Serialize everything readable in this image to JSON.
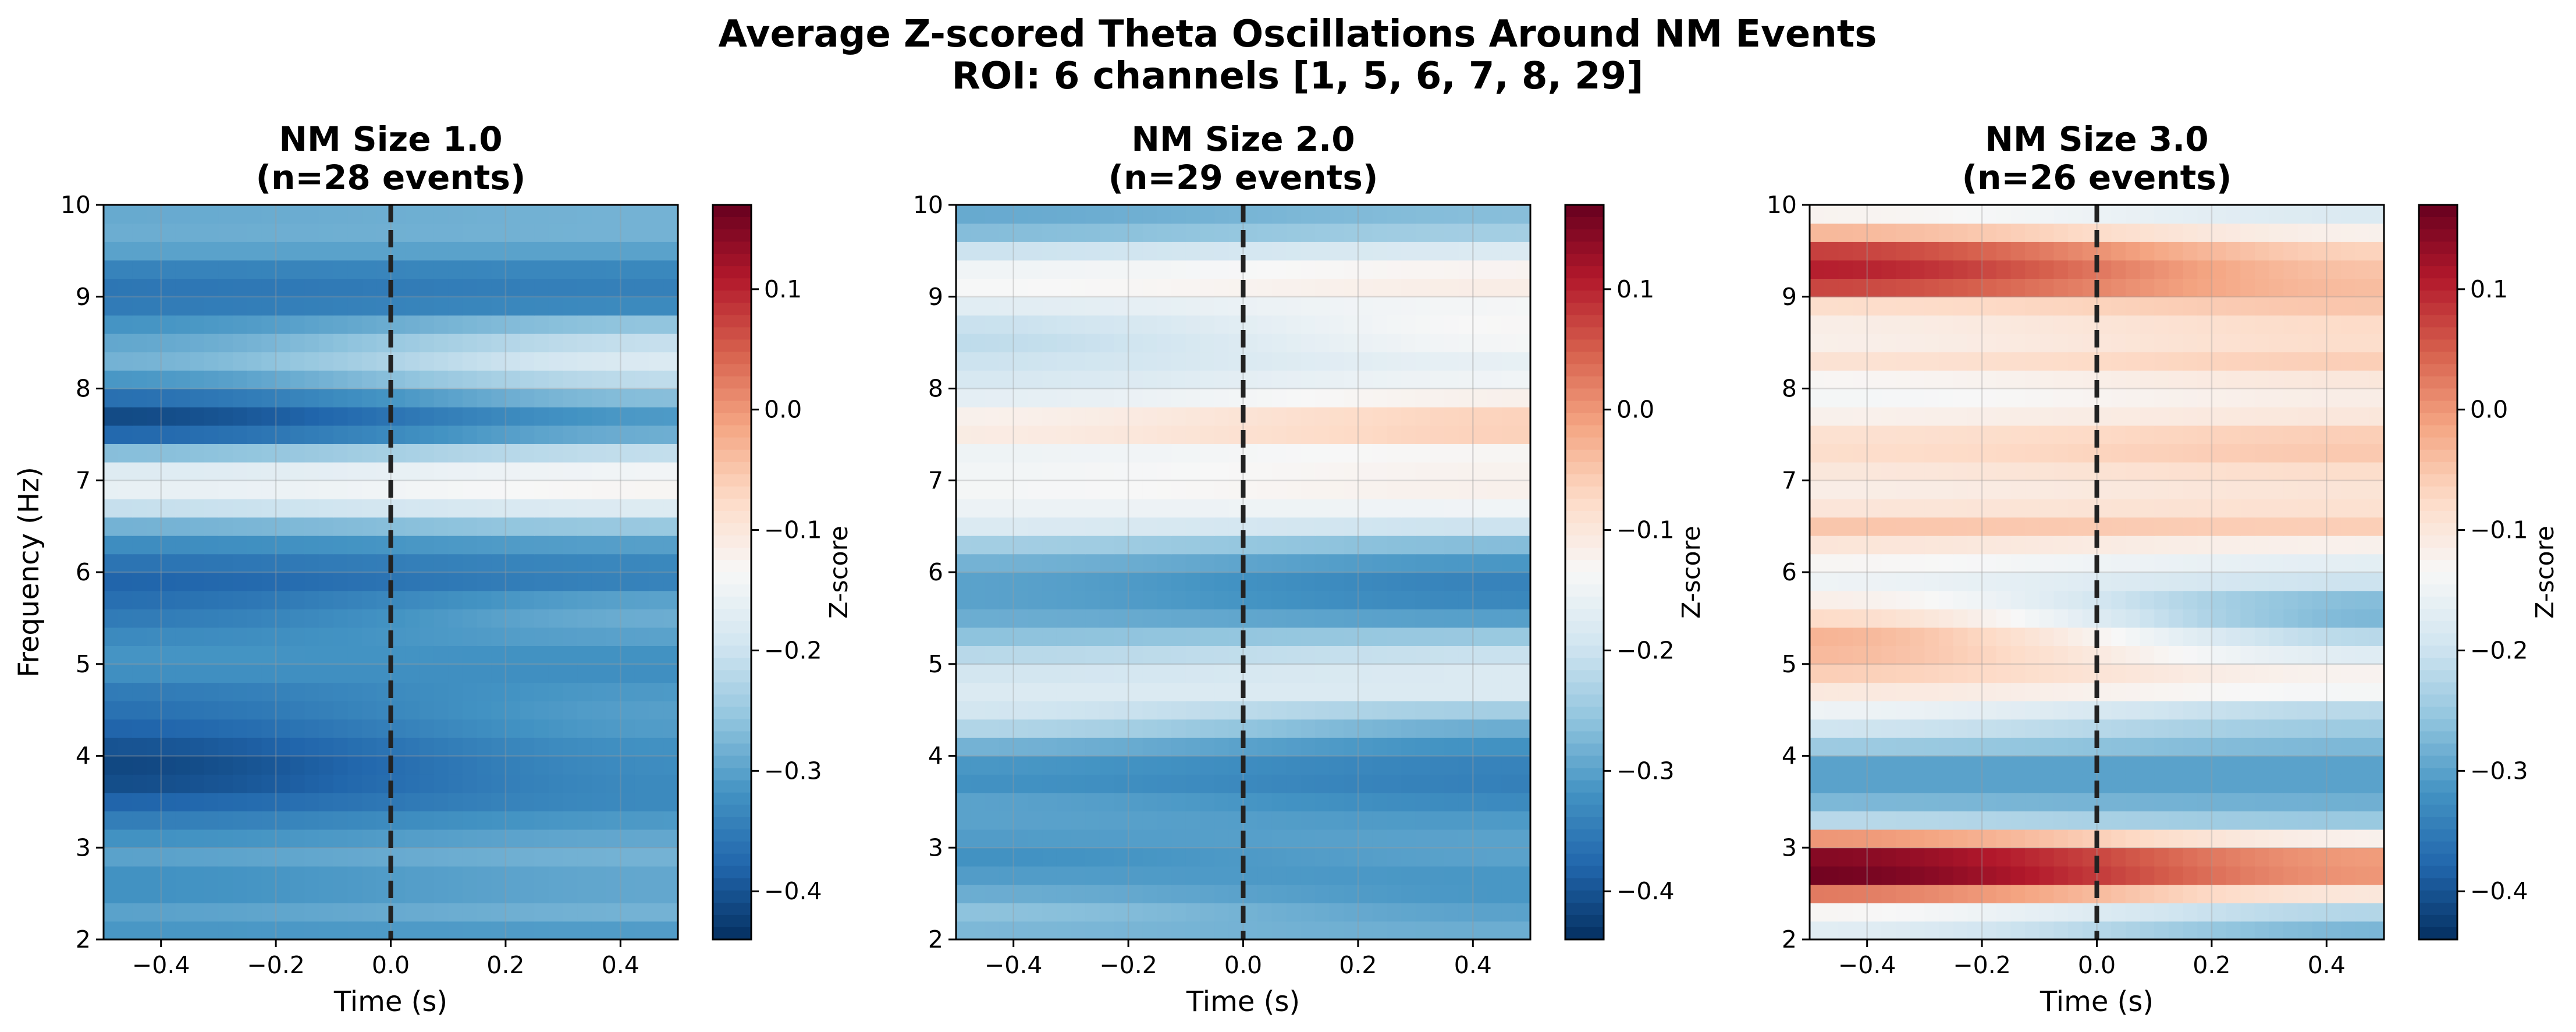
{
  "figure": {
    "title_line1": "Average Z-scored Theta Oscillations Around NM Events",
    "title_line2": "ROI: 6 channels [1, 5, 6, 7, 8, 29]"
  },
  "chart_data": [
    {
      "type": "heatmap",
      "title_line1": "NM Size 1.0",
      "title_line2": "(n=28 events)",
      "xlabel": "Time (s)",
      "ylabel": "Frequency (Hz)",
      "colorbar_label": "Z-score",
      "colormap": "RdBu_r",
      "xlim": [
        -0.5,
        0.5
      ],
      "ylim": [
        2,
        10
      ],
      "clim": [
        -0.44,
        0.17
      ],
      "xticks": [
        "−0.4",
        "−0.2",
        "0.0",
        "0.2",
        "0.4"
      ],
      "yticks": [
        "2",
        "3",
        "4",
        "5",
        "6",
        "7",
        "8",
        "9",
        "10"
      ],
      "cbar_ticks": [
        "−0.4",
        "−0.3",
        "−0.2",
        "−0.1",
        "0.0",
        "0.1"
      ],
      "event_marker_x": 0.0,
      "grid": true,
      "freq_profile_pre": [
        [
          2.0,
          -0.32
        ],
        [
          2.3,
          -0.3
        ],
        [
          2.6,
          -0.33
        ],
        [
          2.9,
          -0.3
        ],
        [
          3.2,
          -0.33
        ],
        [
          3.5,
          -0.38
        ],
        [
          3.8,
          -0.42
        ],
        [
          4.1,
          -0.4
        ],
        [
          4.4,
          -0.37
        ],
        [
          4.7,
          -0.35
        ],
        [
          5.0,
          -0.31
        ],
        [
          5.3,
          -0.33
        ],
        [
          5.6,
          -0.36
        ],
        [
          5.9,
          -0.38
        ],
        [
          6.2,
          -0.35
        ],
        [
          6.5,
          -0.28
        ],
        [
          6.8,
          -0.17
        ],
        [
          7.0,
          -0.15
        ],
        [
          7.2,
          -0.2
        ],
        [
          7.4,
          -0.33
        ],
        [
          7.6,
          -0.42
        ],
        [
          7.8,
          -0.4
        ],
        [
          8.0,
          -0.33
        ],
        [
          8.3,
          -0.28
        ],
        [
          8.6,
          -0.3
        ],
        [
          8.9,
          -0.35
        ],
        [
          9.2,
          -0.36
        ],
        [
          9.5,
          -0.3
        ],
        [
          9.8,
          -0.28
        ],
        [
          10.0,
          -0.3
        ]
      ],
      "freq_profile_post": [
        [
          2.0,
          -0.32
        ],
        [
          2.3,
          -0.28
        ],
        [
          2.6,
          -0.3
        ],
        [
          2.9,
          -0.28
        ],
        [
          3.2,
          -0.3
        ],
        [
          3.5,
          -0.33
        ],
        [
          3.8,
          -0.33
        ],
        [
          4.1,
          -0.32
        ],
        [
          4.4,
          -0.3
        ],
        [
          4.7,
          -0.31
        ],
        [
          5.0,
          -0.33
        ],
        [
          5.3,
          -0.3
        ],
        [
          5.6,
          -0.28
        ],
        [
          5.9,
          -0.34
        ],
        [
          6.2,
          -0.33
        ],
        [
          6.5,
          -0.25
        ],
        [
          6.8,
          -0.14
        ],
        [
          7.0,
          -0.12
        ],
        [
          7.2,
          -0.17
        ],
        [
          7.4,
          -0.25
        ],
        [
          7.6,
          -0.32
        ],
        [
          7.8,
          -0.3
        ],
        [
          8.0,
          -0.23
        ],
        [
          8.3,
          -0.18
        ],
        [
          8.6,
          -0.22
        ],
        [
          8.9,
          -0.33
        ],
        [
          9.2,
          -0.35
        ],
        [
          9.5,
          -0.3
        ],
        [
          9.8,
          -0.27
        ],
        [
          10.0,
          -0.29
        ]
      ]
    },
    {
      "type": "heatmap",
      "title_line1": "NM Size 2.0",
      "title_line2": "(n=29 events)",
      "xlabel": "Time (s)",
      "ylabel": "",
      "colorbar_label": "Z-score",
      "colormap": "RdBu_r",
      "xlim": [
        -0.5,
        0.5
      ],
      "ylim": [
        2,
        10
      ],
      "clim": [
        -0.44,
        0.17
      ],
      "xticks": [
        "−0.4",
        "−0.2",
        "0.0",
        "0.2",
        "0.4"
      ],
      "yticks": [
        "2",
        "3",
        "4",
        "5",
        "6",
        "7",
        "8",
        "9",
        "10"
      ],
      "cbar_ticks": [
        "−0.4",
        "−0.3",
        "−0.2",
        "−0.1",
        "0.0",
        "0.1"
      ],
      "event_marker_x": 0.0,
      "grid": true,
      "freq_profile_pre": [
        [
          2.0,
          -0.28
        ],
        [
          2.3,
          -0.26
        ],
        [
          2.6,
          -0.3
        ],
        [
          2.9,
          -0.32
        ],
        [
          3.2,
          -0.3
        ],
        [
          3.5,
          -0.3
        ],
        [
          3.8,
          -0.33
        ],
        [
          4.1,
          -0.28
        ],
        [
          4.4,
          -0.2
        ],
        [
          4.7,
          -0.18
        ],
        [
          5.0,
          -0.2
        ],
        [
          5.3,
          -0.26
        ],
        [
          5.6,
          -0.3
        ],
        [
          5.9,
          -0.3
        ],
        [
          6.2,
          -0.27
        ],
        [
          6.5,
          -0.18
        ],
        [
          6.8,
          -0.14
        ],
        [
          7.0,
          -0.14
        ],
        [
          7.3,
          -0.15
        ],
        [
          7.6,
          -0.09
        ],
        [
          7.8,
          -0.15
        ],
        [
          8.0,
          -0.18
        ],
        [
          8.3,
          -0.2
        ],
        [
          8.6,
          -0.22
        ],
        [
          8.9,
          -0.17
        ],
        [
          9.2,
          -0.12
        ],
        [
          9.5,
          -0.2
        ],
        [
          9.8,
          -0.3
        ],
        [
          10.0,
          -0.28
        ]
      ],
      "freq_profile_post": [
        [
          2.0,
          -0.28
        ],
        [
          2.3,
          -0.3
        ],
        [
          2.6,
          -0.32
        ],
        [
          2.9,
          -0.3
        ],
        [
          3.2,
          -0.3
        ],
        [
          3.5,
          -0.33
        ],
        [
          3.8,
          -0.35
        ],
        [
          4.1,
          -0.32
        ],
        [
          4.4,
          -0.27
        ],
        [
          4.7,
          -0.18
        ],
        [
          5.0,
          -0.18
        ],
        [
          5.3,
          -0.25
        ],
        [
          5.6,
          -0.33
        ],
        [
          5.9,
          -0.34
        ],
        [
          6.2,
          -0.3
        ],
        [
          6.5,
          -0.2
        ],
        [
          6.8,
          -0.12
        ],
        [
          7.0,
          -0.12
        ],
        [
          7.3,
          -0.13
        ],
        [
          7.6,
          -0.03
        ],
        [
          7.8,
          -0.1
        ],
        [
          8.0,
          -0.14
        ],
        [
          8.3,
          -0.16
        ],
        [
          8.6,
          -0.13
        ],
        [
          8.9,
          -0.14
        ],
        [
          9.2,
          -0.1
        ],
        [
          9.5,
          -0.18
        ],
        [
          9.8,
          -0.27
        ],
        [
          10.0,
          -0.26
        ]
      ]
    },
    {
      "type": "heatmap",
      "title_line1": "NM Size 3.0",
      "title_line2": "(n=26 events)",
      "xlabel": "Time (s)",
      "ylabel": "",
      "colorbar_label": "Z-score",
      "colormap": "RdBu_r",
      "xlim": [
        -0.5,
        0.5
      ],
      "ylim": [
        2,
        10
      ],
      "clim": [
        -0.44,
        0.17
      ],
      "xticks": [
        "−0.4",
        "−0.2",
        "0.0",
        "0.2",
        "0.4"
      ],
      "yticks": [
        "2",
        "3",
        "4",
        "5",
        "6",
        "7",
        "8",
        "9",
        "10"
      ],
      "cbar_ticks": [
        "−0.4",
        "−0.3",
        "−0.2",
        "−0.1",
        "0.0",
        "0.1"
      ],
      "event_marker_x": 0.0,
      "grid": true,
      "freq_profile_pre": [
        [
          2.0,
          -0.18
        ],
        [
          2.2,
          -0.16
        ],
        [
          2.4,
          -0.1
        ],
        [
          2.6,
          0.15
        ],
        [
          2.8,
          0.17
        ],
        [
          3.0,
          0.12
        ],
        [
          3.1,
          0.0
        ],
        [
          3.3,
          -0.22
        ],
        [
          3.6,
          -0.3
        ],
        [
          3.9,
          -0.3
        ],
        [
          4.2,
          -0.22
        ],
        [
          4.5,
          -0.15
        ],
        [
          4.8,
          -0.08
        ],
        [
          5.0,
          -0.04
        ],
        [
          5.3,
          -0.03
        ],
        [
          5.6,
          -0.1
        ],
        [
          5.9,
          -0.15
        ],
        [
          6.2,
          -0.12
        ],
        [
          6.5,
          -0.05
        ],
        [
          6.8,
          -0.12
        ],
        [
          7.1,
          -0.1
        ],
        [
          7.4,
          -0.07
        ],
        [
          7.7,
          -0.12
        ],
        [
          8.0,
          -0.15
        ],
        [
          8.3,
          -0.09
        ],
        [
          8.6,
          -0.13
        ],
        [
          8.9,
          -0.08
        ],
        [
          9.1,
          0.07
        ],
        [
          9.4,
          0.12
        ],
        [
          9.6,
          0.03
        ],
        [
          9.8,
          -0.1
        ],
        [
          10.0,
          -0.15
        ]
      ],
      "freq_profile_post": [
        [
          2.0,
          -0.28
        ],
        [
          2.2,
          -0.27
        ],
        [
          2.4,
          -0.18
        ],
        [
          2.6,
          -0.02
        ],
        [
          2.8,
          0.02
        ],
        [
          3.0,
          -0.03
        ],
        [
          3.1,
          -0.12
        ],
        [
          3.3,
          -0.25
        ],
        [
          3.6,
          -0.3
        ],
        [
          3.9,
          -0.3
        ],
        [
          4.2,
          -0.26
        ],
        [
          4.5,
          -0.22
        ],
        [
          4.8,
          -0.1
        ],
        [
          5.0,
          -0.15
        ],
        [
          5.3,
          -0.22
        ],
        [
          5.6,
          -0.3
        ],
        [
          5.9,
          -0.2
        ],
        [
          6.2,
          -0.15
        ],
        [
          6.5,
          -0.06
        ],
        [
          6.8,
          -0.1
        ],
        [
          7.1,
          -0.08
        ],
        [
          7.4,
          -0.04
        ],
        [
          7.7,
          -0.1
        ],
        [
          8.0,
          -0.12
        ],
        [
          8.3,
          -0.06
        ],
        [
          8.6,
          -0.09
        ],
        [
          8.9,
          -0.05
        ],
        [
          9.1,
          -0.04
        ],
        [
          9.4,
          -0.05
        ],
        [
          9.6,
          -0.08
        ],
        [
          9.8,
          -0.16
        ],
        [
          10.0,
          -0.2
        ]
      ]
    }
  ]
}
